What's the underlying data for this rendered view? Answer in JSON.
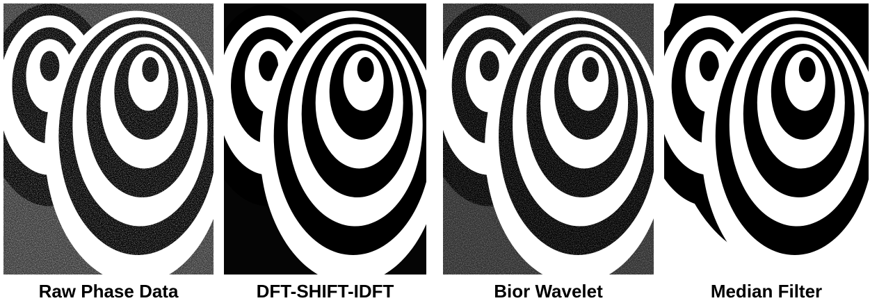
{
  "panels": [
    {
      "caption": "Raw Phase Data"
    },
    {
      "caption": "DFT-SHIFT-IDFT"
    },
    {
      "caption": "Bior Wavelet"
    },
    {
      "caption": "Median Filter"
    }
  ]
}
